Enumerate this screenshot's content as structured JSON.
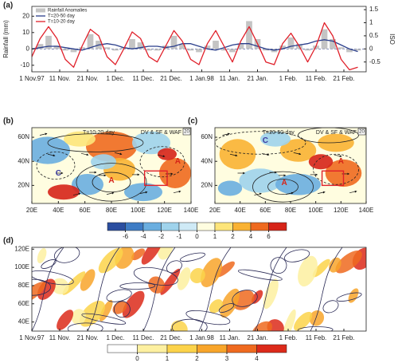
{
  "chart_data": [
    {
      "type": "combo",
      "title": "(a)",
      "ylabel": "Rainfall (mm)",
      "y2label": "ISO",
      "xlim": [
        0,
        120
      ],
      "xticks": [
        {
          "value": 0,
          "label": "1 Nov.97"
        },
        {
          "value": 10,
          "label": "11 Nov."
        },
        {
          "value": 20,
          "label": "21 Nov."
        },
        {
          "value": 30,
          "label": "1 Dec."
        },
        {
          "value": 40,
          "label": "11 Dec."
        },
        {
          "value": 50,
          "label": "21 Dec."
        },
        {
          "value": 61,
          "label": "1 Jan.98"
        },
        {
          "value": 71,
          "label": "11 Jan."
        },
        {
          "value": 81,
          "label": "21 Jan."
        },
        {
          "value": 92,
          "label": "1 Feb."
        },
        {
          "value": 102,
          "label": "11 Feb."
        },
        {
          "value": 112,
          "label": "21 Feb."
        }
      ],
      "ylim": [
        -14,
        26
      ],
      "yticks": [
        -10,
        0,
        10,
        20
      ],
      "y2lim": [
        -0.875,
        1.625
      ],
      "y2ticks": [
        -0.5,
        0,
        0.5,
        1,
        1.5
      ],
      "x": [
        0,
        3,
        6,
        9,
        12,
        15,
        18,
        21,
        24,
        27,
        30,
        33,
        36,
        39,
        42,
        45,
        48,
        51,
        54,
        57,
        60,
        63,
        66,
        69,
        72,
        75,
        78,
        81,
        84,
        87,
        90,
        93,
        96,
        99,
        102,
        105,
        108,
        111,
        114,
        117
      ],
      "series": [
        {
          "name": "Rainfall Anomalies",
          "kind": "bar",
          "color": "#c4c4c4",
          "values": [
            0,
            3,
            8,
            2,
            -1,
            -2,
            1,
            9,
            5,
            1,
            -1,
            1,
            6,
            4,
            -1,
            -1,
            2,
            8,
            3,
            -1,
            -2,
            2,
            5,
            -1,
            -2,
            3,
            17,
            6,
            -1,
            -2,
            2,
            7,
            3,
            -1,
            2,
            12,
            6,
            1,
            -2,
            -1
          ]
        },
        {
          "name": "T=20-50 day",
          "kind": "line",
          "axis": "y2",
          "color": "#2b3f8c",
          "values": [
            0,
            0.05,
            0.1,
            0.1,
            0.05,
            0,
            -0.05,
            0.05,
            0.15,
            0.2,
            0.15,
            0.05,
            0,
            0.05,
            0.1,
            0.1,
            0.05,
            0.1,
            0.2,
            0.2,
            0.1,
            0,
            -0.05,
            0.05,
            0.15,
            0.2,
            0.2,
            0.1,
            0,
            -0.05,
            0,
            0.1,
            0.15,
            0.2,
            0.3,
            0.35,
            0.3,
            0.15,
            0,
            -0.1
          ]
        },
        {
          "name": "T=10-20 day",
          "kind": "line",
          "axis": "y2",
          "color": "#e0202a",
          "values": [
            -0.3,
            0.4,
            0.85,
            0.4,
            -0.4,
            -0.7,
            0.1,
            0.75,
            0.5,
            -0.3,
            -0.6,
            0,
            0.65,
            0.4,
            -0.3,
            -0.5,
            0.1,
            0.7,
            0.3,
            -0.4,
            -0.6,
            0.2,
            0.7,
            0.1,
            -0.5,
            0.3,
            0.85,
            0.2,
            -0.5,
            -0.6,
            0.2,
            0.6,
            0.1,
            -0.5,
            0.1,
            1.0,
            0.5,
            -0.4,
            -0.8,
            -0.7
          ]
        }
      ]
    },
    {
      "type": "map",
      "title": "(b)",
      "annotations": [
        "T=10-20-day",
        "DV & SF & WAF",
        "20"
      ],
      "markers": [
        "A",
        "C",
        "A"
      ],
      "xlim": [
        20,
        140
      ],
      "ylim": [
        5,
        68
      ],
      "xticks": [
        {
          "value": 20,
          "label": "20E"
        },
        {
          "value": 40,
          "label": "40E"
        },
        {
          "value": 60,
          "label": "60E"
        },
        {
          "value": 80,
          "label": "80E"
        },
        {
          "value": 100,
          "label": "100E"
        },
        {
          "value": 120,
          "label": "120E"
        },
        {
          "value": 140,
          "label": "140E"
        }
      ],
      "yticks": [
        {
          "value": 20,
          "label": "20N"
        },
        {
          "value": 40,
          "label": "40N"
        },
        {
          "value": 60,
          "label": "60N"
        }
      ]
    },
    {
      "type": "map",
      "title": "(c)",
      "annotations": [
        "T=20-50-day",
        "DV & SF & WAF",
        "20"
      ],
      "markers": [
        "C",
        "A",
        "A"
      ],
      "xlim": [
        20,
        140
      ],
      "ylim": [
        5,
        68
      ],
      "xticks": [
        {
          "value": 20,
          "label": "20E"
        },
        {
          "value": 40,
          "label": "40E"
        },
        {
          "value": 60,
          "label": "60E"
        },
        {
          "value": 80,
          "label": "80E"
        },
        {
          "value": 100,
          "label": "100E"
        },
        {
          "value": 120,
          "label": "120E"
        },
        {
          "value": 140,
          "label": "140E"
        }
      ],
      "yticks": [
        {
          "value": 20,
          "label": "20N"
        },
        {
          "value": 40,
          "label": "40N"
        },
        {
          "value": 60,
          "label": "60N"
        }
      ]
    },
    {
      "type": "colorbar",
      "ticks": [
        -6,
        -4,
        -2,
        -1,
        0,
        1,
        2,
        4,
        6
      ],
      "colors": [
        "#2b4ea0",
        "#3e7cc5",
        "#6aaee0",
        "#9fd3ec",
        "#cfeaf6",
        "#fffde0",
        "#fde57a",
        "#f9b233",
        "#ef6a1f",
        "#d62418"
      ]
    },
    {
      "type": "hovmoller",
      "title": "(d)",
      "xlim": [
        0,
        120
      ],
      "xticks": [
        {
          "value": 0,
          "label": "1 Nov.97"
        },
        {
          "value": 10,
          "label": "11 Nov."
        },
        {
          "value": 20,
          "label": "21 Nov."
        },
        {
          "value": 30,
          "label": "1 Dec."
        },
        {
          "value": 40,
          "label": "11 Dec."
        },
        {
          "value": 50,
          "label": "21 Dec."
        },
        {
          "value": 61,
          "label": "1 Jan.98"
        },
        {
          "value": 71,
          "label": "11 Jan."
        },
        {
          "value": 81,
          "label": "21 Jan."
        },
        {
          "value": 92,
          "label": "1 Feb."
        },
        {
          "value": 102,
          "label": "11 Feb."
        },
        {
          "value": 112,
          "label": "21 Feb."
        }
      ],
      "ylim": [
        30,
        122
      ],
      "yticks": [
        {
          "value": 40,
          "label": "40E"
        },
        {
          "value": 60,
          "label": "60E"
        },
        {
          "value": 80,
          "label": "80E"
        },
        {
          "value": 100,
          "label": "100E"
        },
        {
          "value": 120,
          "label": "120E"
        }
      ]
    },
    {
      "type": "colorbar",
      "ticks": [
        0,
        1,
        2,
        3,
        4
      ],
      "colors": [
        "#ffffff",
        "#fdf0a0",
        "#fcd34a",
        "#f8a52a",
        "#ef6a1f",
        "#dc2a1a"
      ]
    }
  ]
}
